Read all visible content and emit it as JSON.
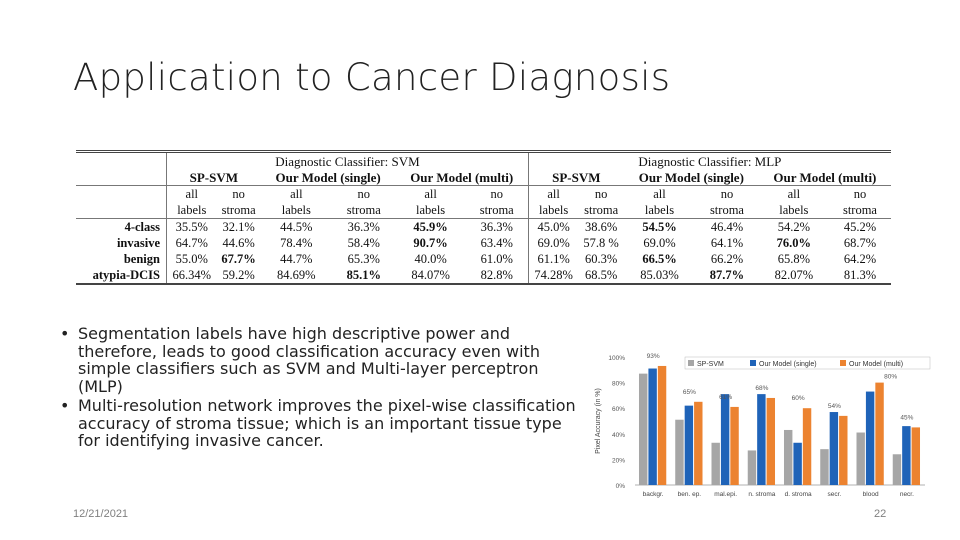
{
  "slide": {
    "title": "Application to Cancer Diagnosis",
    "date": "12/21/2021",
    "page_number": "22"
  },
  "table": {
    "group_headers": [
      "Diagnostic Classifier: SVM",
      "Diagnostic Classifier: MLP"
    ],
    "model_headers": [
      "SP-SVM",
      "Our Model (single)",
      "Our Model (multi)",
      "SP-SVM",
      "Our Model (single)",
      "Our Model (multi)"
    ],
    "sub_header_top": [
      "all",
      "no",
      "all",
      "no",
      "all",
      "no",
      "all",
      "no",
      "all",
      "no",
      "all",
      "no"
    ],
    "sub_header_bottom": [
      "labels",
      "stroma",
      "labels",
      "stroma",
      "labels",
      "stroma",
      "labels",
      "stroma",
      "labels",
      "stroma",
      "labels",
      "stroma"
    ],
    "rows": [
      {
        "name": "4-class",
        "cells": [
          "35.5%",
          "32.1%",
          "44.5%",
          "36.3%",
          "45.9%",
          "36.3%",
          "45.0%",
          "38.6%",
          "54.5%",
          "46.4%",
          "54.2%",
          "45.2%"
        ],
        "bold": [
          4,
          8
        ]
      },
      {
        "name": "invasive",
        "cells": [
          "64.7%",
          "44.6%",
          "78.4%",
          "58.4%",
          "90.7%",
          "63.4%",
          "69.0%",
          "57.8 %",
          "69.0%",
          "64.1%",
          "76.0%",
          "68.7%"
        ],
        "bold": [
          4,
          10
        ]
      },
      {
        "name": "benign",
        "cells": [
          "55.0%",
          "67.7%",
          "44.7%",
          "65.3%",
          "40.0%",
          "61.0%",
          "61.1%",
          "60.3%",
          "66.5%",
          "66.2%",
          "65.8%",
          "64.2%"
        ],
        "bold": [
          1,
          8
        ]
      },
      {
        "name": "atypia-DCIS",
        "cells": [
          "66.34%",
          "59.2%",
          "84.69%",
          "85.1%",
          "84.07%",
          "82.8%",
          "74.28%",
          "68.5%",
          "85.03%",
          "87.7%",
          "82.07%",
          "81.3%"
        ],
        "bold": [
          3,
          9
        ]
      }
    ]
  },
  "bullets": [
    "Segmentation labels have high descriptive power and therefore, leads to good classification accuracy even with simple classifiers such as SVM and Multi-layer perceptron (MLP)",
    "Multi-resolution network improves the pixel-wise classification accuracy of stroma tissue; which is an important tissue type for identifying invasive cancer."
  ],
  "chart_data": {
    "type": "bar",
    "ylabel": "Pixel Accuracy (in %)",
    "ylim": [
      0,
      100
    ],
    "yticks": [
      "0%",
      "20%",
      "40%",
      "60%",
      "80%",
      "100%"
    ],
    "categories": [
      "backgr.",
      "ben. ep.",
      "mal.epi.",
      "n. stroma",
      "d. stroma",
      "secr.",
      "blood",
      "necr."
    ],
    "series": [
      {
        "name": "SP-SVM",
        "color": "#a6a6a6",
        "values": [
          87,
          51,
          33,
          27,
          43,
          28,
          41,
          24
        ]
      },
      {
        "name": "Our Model (single)",
        "color": "#1f63b8",
        "values": [
          91,
          62,
          71,
          71,
          33,
          57,
          73,
          46
        ]
      },
      {
        "name": "Our Model (multi)",
        "color": "#ec8330",
        "values": [
          93,
          65,
          61,
          68,
          60,
          54,
          80,
          45
        ]
      }
    ],
    "annotations": [
      {
        "text": "93%",
        "x": "backgr.",
        "y": 93
      },
      {
        "text": "65%",
        "x": "ben. ep.",
        "y": 65
      },
      {
        "text": "61%",
        "x": "mal.epi.",
        "y": 61
      },
      {
        "text": "68%",
        "x": "n. stroma",
        "y": 68
      },
      {
        "text": "60%",
        "x": "d. stroma",
        "y": 60
      },
      {
        "text": "54%",
        "x": "secr.",
        "y": 54
      },
      {
        "text": "80%",
        "x": "blood",
        "y": 80
      },
      {
        "text": "45%",
        "x": "necr.",
        "y": 45
      }
    ],
    "legend": "top",
    "grid": false
  }
}
